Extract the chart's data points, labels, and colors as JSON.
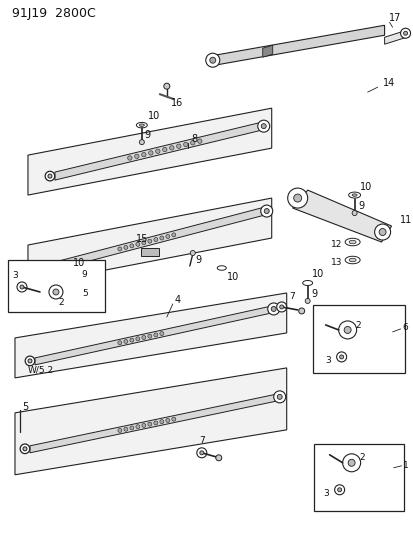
{
  "title": "91J19  2800C",
  "bg_color": "#ffffff",
  "line_color": "#222222",
  "label_color": "#111111",
  "fig_width": 4.14,
  "fig_height": 5.33,
  "dpi": 100
}
